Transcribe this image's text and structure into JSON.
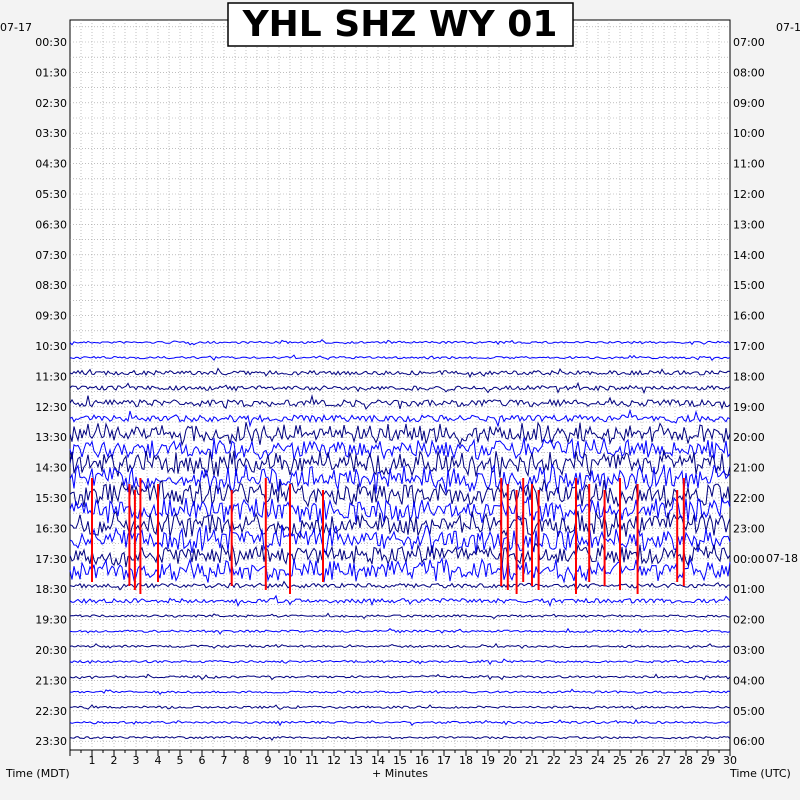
{
  "chart_data": {
    "type": "helicorder",
    "title": "YHL SHZ WY 01",
    "date_left": "07-17",
    "date_right_top": "07-1",
    "date_right_change": "07-18",
    "xlabel": "+ Minutes",
    "left_axis_label": "Time (MDT)",
    "right_axis_label": "Time (UTC)",
    "x_ticks": [
      1,
      2,
      3,
      4,
      5,
      6,
      7,
      8,
      9,
      10,
      11,
      12,
      13,
      14,
      15,
      16,
      17,
      18,
      19,
      20,
      21,
      22,
      23,
      24,
      25,
      26,
      27,
      28,
      29,
      30
    ],
    "xlim": [
      0,
      30
    ],
    "rows": [
      {
        "local": "00:30",
        "utc": "07:00",
        "amplitude": 0,
        "series": "none"
      },
      {
        "local": "01:30",
        "utc": "08:00",
        "amplitude": 0,
        "series": "none"
      },
      {
        "local": "02:30",
        "utc": "09:00",
        "amplitude": 0,
        "series": "none"
      },
      {
        "local": "03:30",
        "utc": "10:00",
        "amplitude": 0,
        "series": "none"
      },
      {
        "local": "04:30",
        "utc": "11:00",
        "amplitude": 0,
        "series": "none"
      },
      {
        "local": "05:30",
        "utc": "12:00",
        "amplitude": 0,
        "series": "none"
      },
      {
        "local": "06:30",
        "utc": "13:00",
        "amplitude": 0,
        "series": "none"
      },
      {
        "local": "07:30",
        "utc": "14:00",
        "amplitude": 0,
        "series": "none"
      },
      {
        "local": "08:30",
        "utc": "15:00",
        "amplitude": 0,
        "series": "none"
      },
      {
        "local": "09:30",
        "utc": "16:00",
        "amplitude": 0,
        "series": "none"
      },
      {
        "local": "10:30",
        "utc": "17:00",
        "amplitude": 1,
        "series": "blue"
      },
      {
        "local": "11:30",
        "utc": "18:00",
        "amplitude": 2,
        "series": "navy"
      },
      {
        "local": "12:30",
        "utc": "19:00",
        "amplitude": 3,
        "series": "mixed"
      },
      {
        "local": "13:30",
        "utc": "20:00",
        "amplitude": 5,
        "series": "mixed"
      },
      {
        "local": "14:30",
        "utc": "21:00",
        "amplitude": 6,
        "series": "mixed"
      },
      {
        "local": "15:30",
        "utc": "22:00",
        "amplitude": 6,
        "series": "mixed"
      },
      {
        "local": "16:30",
        "utc": "23:00",
        "amplitude": 6,
        "series": "mixed"
      },
      {
        "local": "17:30",
        "utc": "00:00",
        "amplitude": 5,
        "series": "mixed"
      },
      {
        "local": "18:30",
        "utc": "01:00",
        "amplitude": 2,
        "series": "mixed"
      },
      {
        "local": "19:30",
        "utc": "02:00",
        "amplitude": 1,
        "series": "mixed"
      },
      {
        "local": "20:30",
        "utc": "03:00",
        "amplitude": 1,
        "series": "mixed"
      },
      {
        "local": "21:30",
        "utc": "04:00",
        "amplitude": 1,
        "series": "mixed"
      },
      {
        "local": "22:30",
        "utc": "05:00",
        "amplitude": 1,
        "series": "mixed"
      },
      {
        "local": "23:30",
        "utc": "06:00",
        "amplitude": 1,
        "series": "mixed"
      }
    ],
    "clipped_color": "#ff0000",
    "trace_colors": [
      "#00007f",
      "#0000ff"
    ],
    "grid": "dotted"
  }
}
